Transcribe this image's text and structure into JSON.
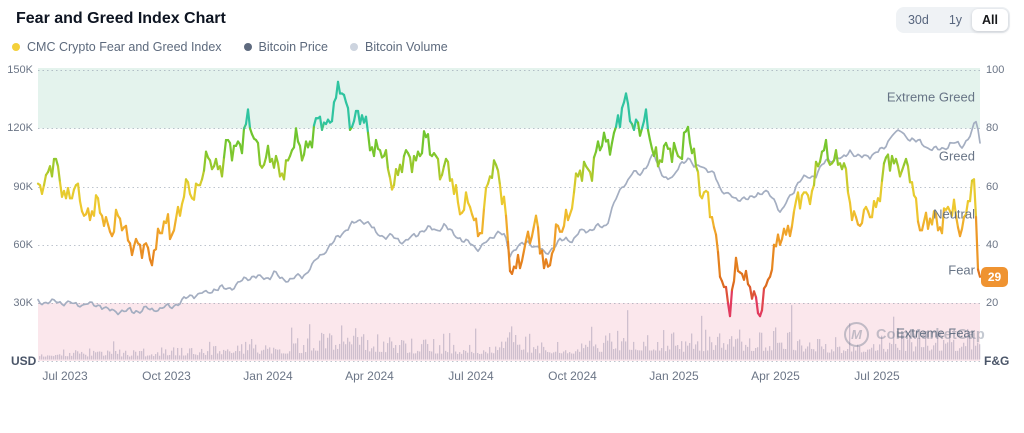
{
  "header": {
    "title": "Fear and Greed Index Chart"
  },
  "controls": {
    "range_buttons": [
      {
        "label": "30d",
        "active": false
      },
      {
        "label": "1y",
        "active": false
      },
      {
        "label": "All",
        "active": true
      }
    ]
  },
  "legend": {
    "items": [
      {
        "label": "CMC Crypto Fear and Greed Index",
        "color": "#F4D03A"
      },
      {
        "label": "Bitcoin Price",
        "color": "#5E6A7E"
      },
      {
        "label": "Bitcoin Volume",
        "color": "#CDD4DF"
      }
    ]
  },
  "watermark": {
    "icon_letter": "M",
    "text": "CoinMarketCap"
  },
  "chart_data": {
    "type": "line",
    "title": "Fear and Greed Index Chart",
    "x_unit": "months since 2023-06-01",
    "x_domain": [
      0.2,
      28.05
    ],
    "x_tick_positions": [
      1,
      4,
      7,
      10,
      13,
      16,
      19,
      22,
      25
    ],
    "x_tick_labels": [
      "Jul 2023",
      "Oct 2023",
      "Jan 2024",
      "Apr 2024",
      "Jul 2024",
      "Oct 2024",
      "Jan 2025",
      "Apr 2025",
      "Jul 2025"
    ],
    "left_axis": {
      "unit_label": "USD",
      "tick_labels": [
        "150K",
        "120K",
        "90K",
        "60K",
        "30K"
      ],
      "tick_values_usd": [
        150000,
        120000,
        90000,
        60000,
        30000
      ],
      "range_usd": [
        0,
        155000
      ]
    },
    "right_axis": {
      "unit_label": "F&G",
      "tick_labels": [
        "100",
        "80",
        "60",
        "40",
        "20"
      ],
      "tick_values": [
        100,
        80,
        60,
        40,
        20
      ],
      "range": [
        0,
        100
      ]
    },
    "grid": "dotted horizontal",
    "legend_position": "top-left",
    "zones": [
      {
        "label": "Extreme Greed",
        "range": [
          80,
          100
        ],
        "bg": "#E4F3ED"
      },
      {
        "label": "Greed",
        "range": [
          60,
          80
        ],
        "bg": null
      },
      {
        "label": "Neutral",
        "range": [
          40,
          60
        ],
        "bg": null
      },
      {
        "label": "Fear",
        "range": [
          20,
          40
        ],
        "bg": null
      },
      {
        "label": "Extreme Fear",
        "range": [
          0,
          20
        ],
        "bg": "#FBE7EC"
      }
    ],
    "current": {
      "label": "29",
      "value": 29,
      "badge_color": "#EF9331"
    },
    "series": [
      {
        "name": "CMC Crypto Fear and Greed Index",
        "axis": "right",
        "style": "line-colored-by-value",
        "color_stops": [
          [
            0,
            "#E23A5E"
          ],
          [
            20,
            "#E23A5E"
          ],
          [
            25,
            "#DB661F"
          ],
          [
            34,
            "#E5821E"
          ],
          [
            44,
            "#F0A22A"
          ],
          [
            53,
            "#EEC92F"
          ],
          [
            60,
            "#E3CC2E"
          ],
          [
            67,
            "#9BC92C"
          ],
          [
            73,
            "#76C62F"
          ],
          [
            80,
            "#6CC52F"
          ],
          [
            81,
            "#2FC4A0"
          ],
          [
            100,
            "#2FC4A0"
          ]
        ],
        "points": [
          [
            0.2,
            62
          ],
          [
            0.7,
            66
          ],
          [
            1.0,
            60
          ],
          [
            1.4,
            55
          ],
          [
            1.8,
            52
          ],
          [
            2.2,
            48
          ],
          [
            2.6,
            47
          ],
          [
            3.0,
            42
          ],
          [
            3.2,
            37
          ],
          [
            3.5,
            38
          ],
          [
            3.8,
            43
          ],
          [
            4.0,
            44
          ],
          [
            4.3,
            50
          ],
          [
            4.7,
            58
          ],
          [
            5.0,
            63
          ],
          [
            5.3,
            67
          ],
          [
            5.6,
            70
          ],
          [
            6.0,
            72
          ],
          [
            6.2,
            78
          ],
          [
            6.4,
            81
          ],
          [
            6.6,
            74
          ],
          [
            6.8,
            72
          ],
          [
            7.0,
            70
          ],
          [
            7.2,
            64
          ],
          [
            7.5,
            68
          ],
          [
            7.8,
            73
          ],
          [
            8.0,
            74
          ],
          [
            8.3,
            78
          ],
          [
            8.6,
            82
          ],
          [
            9.0,
            88
          ],
          [
            9.2,
            92
          ],
          [
            9.4,
            86
          ],
          [
            9.6,
            83
          ],
          [
            9.9,
            80
          ],
          [
            10.1,
            76
          ],
          [
            10.4,
            68
          ],
          [
            10.7,
            64
          ],
          [
            11.0,
            66
          ],
          [
            11.3,
            71
          ],
          [
            11.6,
            74
          ],
          [
            12.0,
            71
          ],
          [
            12.3,
            63
          ],
          [
            12.6,
            57
          ],
          [
            13.0,
            50
          ],
          [
            13.2,
            44
          ],
          [
            13.5,
            60
          ],
          [
            13.8,
            66
          ],
          [
            14.0,
            57
          ],
          [
            14.13,
            32
          ],
          [
            14.3,
            27
          ],
          [
            14.6,
            42
          ],
          [
            14.9,
            45
          ],
          [
            15.2,
            34
          ],
          [
            15.5,
            40
          ],
          [
            15.8,
            49
          ],
          [
            16.0,
            58
          ],
          [
            16.3,
            64
          ],
          [
            16.6,
            70
          ],
          [
            17.0,
            74
          ],
          [
            17.3,
            82
          ],
          [
            17.6,
            87
          ],
          [
            17.9,
            83
          ],
          [
            18.2,
            78
          ],
          [
            18.5,
            72
          ],
          [
            18.8,
            70
          ],
          [
            19.1,
            74
          ],
          [
            19.4,
            76
          ],
          [
            19.7,
            65
          ],
          [
            20.0,
            55
          ],
          [
            20.2,
            42
          ],
          [
            20.45,
            30
          ],
          [
            20.65,
            16
          ],
          [
            20.8,
            28
          ],
          [
            21.0,
            34
          ],
          [
            21.2,
            28
          ],
          [
            21.35,
            20
          ],
          [
            21.5,
            13
          ],
          [
            21.65,
            25
          ],
          [
            21.8,
            32
          ],
          [
            22.0,
            35
          ],
          [
            22.2,
            44
          ],
          [
            22.5,
            50
          ],
          [
            22.8,
            55
          ],
          [
            23.1,
            62
          ],
          [
            23.4,
            70
          ],
          [
            23.7,
            72
          ],
          [
            24.0,
            64
          ],
          [
            24.3,
            52
          ],
          [
            24.6,
            46
          ],
          [
            25.0,
            57
          ],
          [
            25.3,
            67
          ],
          [
            25.6,
            71
          ],
          [
            25.9,
            64
          ],
          [
            26.2,
            52
          ],
          [
            26.5,
            45
          ],
          [
            26.8,
            49
          ],
          [
            27.1,
            53
          ],
          [
            27.4,
            45
          ],
          [
            27.6,
            52
          ],
          [
            27.85,
            62
          ],
          [
            27.95,
            40
          ],
          [
            28.0,
            26
          ],
          [
            28.03,
            31
          ],
          [
            28.05,
            29
          ]
        ]
      },
      {
        "name": "Bitcoin Price",
        "axis": "left",
        "style": "line",
        "color": "#A4AEC1",
        "unit": "USD thousands",
        "points": [
          [
            0.2,
            31.0
          ],
          [
            0.6,
            30.6
          ],
          [
            1.0,
            30.3
          ],
          [
            1.3,
            29.3
          ],
          [
            1.7,
            29.5
          ],
          [
            2.0,
            29.2
          ],
          [
            2.3,
            26.1
          ],
          [
            2.7,
            26.0
          ],
          [
            3.0,
            25.9
          ],
          [
            3.4,
            26.6
          ],
          [
            3.8,
            27.2
          ],
          [
            4.0,
            27.6
          ],
          [
            4.4,
            29.8
          ],
          [
            4.7,
            33.8
          ],
          [
            5.0,
            34.6
          ],
          [
            5.4,
            36.8
          ],
          [
            5.7,
            37.5
          ],
          [
            6.0,
            38.5
          ],
          [
            6.3,
            42.0
          ],
          [
            6.55,
            44.2
          ],
          [
            6.8,
            42.5
          ],
          [
            7.0,
            42.8
          ],
          [
            7.2,
            46.0
          ],
          [
            7.4,
            42.0
          ],
          [
            7.7,
            42.8
          ],
          [
            8.0,
            43.2
          ],
          [
            8.4,
            51.5
          ],
          [
            8.7,
            57.0
          ],
          [
            9.0,
            62.5
          ],
          [
            9.3,
            68.0
          ],
          [
            9.6,
            71.5
          ],
          [
            9.8,
            73.0
          ],
          [
            10.0,
            70.5
          ],
          [
            10.2,
            66.0
          ],
          [
            10.5,
            64.0
          ],
          [
            10.8,
            63.5
          ],
          [
            11.0,
            61.5
          ],
          [
            11.2,
            63.0
          ],
          [
            11.5,
            67.0
          ],
          [
            11.8,
            68.5
          ],
          [
            12.0,
            67.5
          ],
          [
            12.2,
            69.5
          ],
          [
            12.5,
            66.0
          ],
          [
            12.8,
            61.5
          ],
          [
            13.0,
            61.0
          ],
          [
            13.2,
            58.0
          ],
          [
            13.5,
            61.5
          ],
          [
            13.8,
            67.0
          ],
          [
            14.0,
            64.5
          ],
          [
            14.15,
            55.0
          ],
          [
            14.4,
            59.5
          ],
          [
            14.7,
            61.0
          ],
          [
            15.0,
            58.5
          ],
          [
            15.2,
            55.0
          ],
          [
            15.5,
            60.0
          ],
          [
            15.8,
            63.5
          ],
          [
            16.0,
            62.0
          ],
          [
            16.2,
            66.5
          ],
          [
            16.5,
            68.0
          ],
          [
            16.8,
            69.0
          ],
          [
            17.0,
            70.5
          ],
          [
            17.2,
            80.0
          ],
          [
            17.5,
            91.0
          ],
          [
            17.8,
            97.5
          ],
          [
            18.0,
            96.0
          ],
          [
            18.2,
            101.5
          ],
          [
            18.4,
            106.5
          ],
          [
            18.6,
            97.5
          ],
          [
            18.8,
            94.0
          ],
          [
            19.0,
            94.5
          ],
          [
            19.2,
            102.5
          ],
          [
            19.4,
            104.5
          ],
          [
            19.6,
            100.0
          ],
          [
            19.8,
            102.0
          ],
          [
            20.0,
            97.5
          ],
          [
            20.2,
            96.5
          ],
          [
            20.4,
            88.0
          ],
          [
            20.7,
            84.5
          ],
          [
            21.0,
            84.0
          ],
          [
            21.2,
            83.0
          ],
          [
            21.5,
            87.0
          ],
          [
            21.8,
            86.5
          ],
          [
            22.0,
            82.5
          ],
          [
            22.15,
            76.5
          ],
          [
            22.4,
            83.5
          ],
          [
            22.7,
            93.5
          ],
          [
            23.0,
            94.5
          ],
          [
            23.2,
            96.5
          ],
          [
            23.5,
            103.0
          ],
          [
            23.8,
            105.0
          ],
          [
            24.0,
            104.0
          ],
          [
            24.2,
            108.5
          ],
          [
            24.5,
            105.0
          ],
          [
            24.8,
            106.0
          ],
          [
            25.0,
            108.0
          ],
          [
            25.2,
            109.5
          ],
          [
            25.45,
            117.5
          ],
          [
            25.7,
            118.0
          ],
          [
            26.0,
            114.5
          ],
          [
            26.2,
            113.0
          ],
          [
            26.5,
            110.5
          ],
          [
            26.8,
            108.5
          ],
          [
            27.0,
            110.0
          ],
          [
            27.2,
            112.5
          ],
          [
            27.5,
            111.0
          ],
          [
            27.75,
            116.5
          ],
          [
            27.95,
            124.0
          ],
          [
            28.05,
            112.0
          ]
        ]
      },
      {
        "name": "Bitcoin Volume",
        "axis": "left",
        "style": "bars",
        "color": "rgba(141,132,163,0.40)",
        "unit": "relative 0-1 envelope",
        "points": [
          [
            0.2,
            0.2
          ],
          [
            1,
            0.2
          ],
          [
            2,
            0.22
          ],
          [
            3,
            0.2
          ],
          [
            4,
            0.24
          ],
          [
            5,
            0.3
          ],
          [
            6,
            0.34
          ],
          [
            7,
            0.38
          ],
          [
            8,
            0.42
          ],
          [
            8.8,
            0.6
          ],
          [
            9.2,
            0.8
          ],
          [
            9.6,
            0.6
          ],
          [
            10,
            0.55
          ],
          [
            10.5,
            0.48
          ],
          [
            11,
            0.42
          ],
          [
            12,
            0.4
          ],
          [
            13,
            0.36
          ],
          [
            13.9,
            0.42
          ],
          [
            14.15,
            0.75
          ],
          [
            14.5,
            0.5
          ],
          [
            15,
            0.42
          ],
          [
            16,
            0.4
          ],
          [
            17,
            0.55
          ],
          [
            17.6,
            0.68
          ],
          [
            18,
            0.62
          ],
          [
            18.5,
            0.6
          ],
          [
            19,
            0.52
          ],
          [
            19.8,
            0.55
          ],
          [
            20.4,
            0.68
          ],
          [
            21,
            0.58
          ],
          [
            21.8,
            0.6
          ],
          [
            22.15,
            0.75
          ],
          [
            22.6,
            0.6
          ],
          [
            23,
            0.5
          ],
          [
            24,
            0.44
          ],
          [
            25,
            0.5
          ],
          [
            25.6,
            0.58
          ],
          [
            26,
            0.55
          ],
          [
            26.6,
            0.6
          ],
          [
            27,
            0.5
          ],
          [
            27.6,
            0.62
          ],
          [
            28.05,
            0.8
          ]
        ]
      }
    ]
  }
}
